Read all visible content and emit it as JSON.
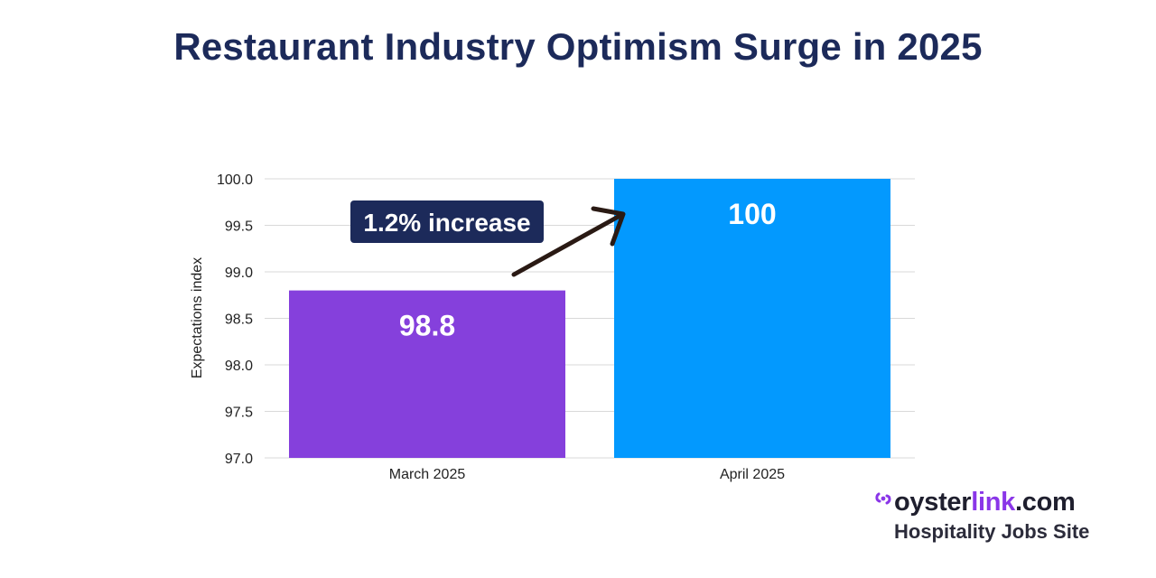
{
  "chart_data": {
    "type": "bar",
    "title": "Restaurant Industry Optimism Surge in 2025",
    "xlabel": "",
    "ylabel": "Expectations index",
    "categories": [
      "March 2025",
      "April 2025"
    ],
    "values": [
      98.8,
      100
    ],
    "value_labels": [
      "98.8",
      "100"
    ],
    "bar_colors": [
      "#8540dc",
      "#0399fe"
    ],
    "ylim": [
      97.0,
      100.0
    ],
    "yticks": [
      97.0,
      97.5,
      98.0,
      98.5,
      99.0,
      99.5,
      100.0
    ],
    "ytick_labels": [
      "97.0",
      "97.5",
      "98.0",
      "98.5",
      "99.0",
      "99.5",
      "100.0"
    ],
    "grid": true,
    "annotation": {
      "text": "1.2% increase",
      "box_color": "#1c2a5a",
      "arrow_color": "#2a1a14"
    }
  },
  "brand": {
    "name_part1": "oyster",
    "name_part2": "link",
    "name_part3": ".com",
    "tagline": "Hospitality Jobs Site",
    "accent_color": "#8a36e8"
  }
}
